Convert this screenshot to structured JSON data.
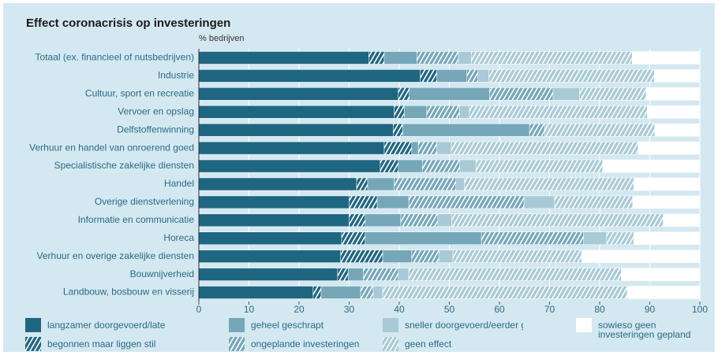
{
  "chart_data": {
    "type": "stacked_barh",
    "title": "Effect coronacrisis op investeringen",
    "subtitle": "% bedrijven",
    "categories": [
      "Totaal (ex. financieel of nutsbedrijven)",
      "Industrie",
      "Cultuur, sport en recreatie",
      "Vervoer en opslag",
      "Delfstoffenwinning",
      "Verhuur en handel van onroerend goed",
      "Specialistische zakelijke diensten",
      "Handel",
      "Overige dienstverlening",
      "Informatie en communicatie",
      "Horeca",
      "Verhuur en overige zakelijke diensten",
      "Bouwnijverheid",
      "Landbouw, bosbouw en visserij"
    ],
    "series": [
      {
        "name": "langzamer doorgevoerd/later gestart",
        "color": "#1f6680",
        "hatched": false,
        "values": [
          33.9,
          44.2,
          39.8,
          39,
          38.8,
          37,
          36.2,
          31.5,
          30,
          30,
          28.5,
          28.3,
          27.7,
          22.8
        ]
      },
      {
        "name": "begonnen maar liggen stil",
        "color": "#1f6680",
        "hatched": true,
        "values": [
          3.1,
          3.3,
          2.2,
          2,
          1.9,
          5.5,
          3.6,
          2.2,
          5.6,
          3.2,
          4.7,
          8.4,
          2.1,
          1.6
        ]
      },
      {
        "name": "geheel geschrapt",
        "color": "#75a7b9",
        "hatched": false,
        "values": [
          6.5,
          6,
          16,
          4.5,
          25.3,
          1.3,
          4.8,
          5.3,
          6.3,
          7.1,
          23.2,
          5.8,
          3,
          7.9
        ]
      },
      {
        "name": "ongeplande investeringen",
        "color": "#75a7b9",
        "hatched": true,
        "values": [
          8.3,
          2.2,
          12.7,
          6.5,
          3,
          3.7,
          7.5,
          12.3,
          23,
          7.4,
          20.4,
          5.4,
          7,
          2.5
        ]
      },
      {
        "name": "sneller doorgevoerd/eerder gestart",
        "color": "#a8cad6",
        "hatched": false,
        "values": [
          2.6,
          2.2,
          5.3,
          2,
          0,
          2.9,
          3.2,
          1.7,
          6.1,
          2.8,
          4.6,
          2.8,
          2.1,
          1.9
        ]
      },
      {
        "name": "geen effect",
        "color": "#a8cad6",
        "hatched": true,
        "values": [
          32.1,
          33,
          13.3,
          35.5,
          22,
          37.3,
          25.3,
          33.8,
          15.6,
          42.2,
          5.4,
          25.7,
          42.4,
          48.8
        ]
      },
      {
        "name": "sowieso geen investeringen gepland",
        "color": "#ffffff",
        "hatched": false,
        "values": [
          13.5,
          9.1,
          10.7,
          10.5,
          9,
          12.3,
          19.4,
          13.2,
          13.4,
          7.3,
          13.2,
          23.6,
          15.7,
          14.5
        ]
      }
    ],
    "xlim": [
      0,
      100
    ],
    "xticks": [
      0,
      10,
      20,
      30,
      40,
      50,
      60,
      70,
      80,
      90,
      100
    ],
    "grid": true
  }
}
